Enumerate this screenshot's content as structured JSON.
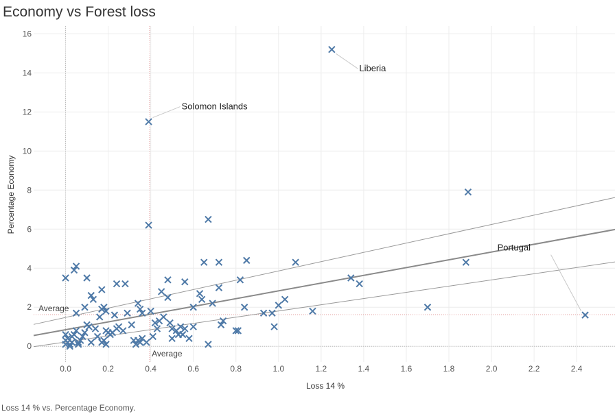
{
  "title": "Economy vs Forest loss",
  "caption": "Loss 14 % vs. Percentage Economy.",
  "chart_data": {
    "type": "scatter",
    "xlabel": "Loss 14 %",
    "ylabel": "Percentage Economy",
    "xlim": [
      -0.15,
      2.58
    ],
    "ylim": [
      -0.8,
      16.4
    ],
    "xticks": [
      "0.0",
      "0.2",
      "0.4",
      "0.6",
      "0.8",
      "1.0",
      "1.2",
      "1.4",
      "1.6",
      "1.8",
      "2.0",
      "2.2",
      "2.4"
    ],
    "yticks": [
      "0",
      "2",
      "4",
      "6",
      "8",
      "10",
      "12",
      "14",
      "16"
    ],
    "grid": true,
    "marker": "x",
    "marker_color": "#4e79a7",
    "reference_lines": {
      "x_average": {
        "value": 0.395,
        "label": "Average",
        "color": "#e6a6a6"
      },
      "y_average": {
        "value": 1.62,
        "label": "Average",
        "color": "#e6a6a6"
      }
    },
    "trend": {
      "line": [
        [
          -0.15,
          0.55
        ],
        [
          2.58,
          5.98
        ]
      ],
      "upper_band": [
        [
          -0.15,
          1.12
        ],
        [
          2.58,
          7.62
        ]
      ],
      "lower_band": [
        [
          -0.15,
          -0.02
        ],
        [
          2.58,
          4.32
        ]
      ]
    },
    "annotations": [
      {
        "label": "Liberia",
        "x": 1.25,
        "y": 15.2
      },
      {
        "label": "Solomon Islands",
        "x": 0.39,
        "y": 11.5
      },
      {
        "label": "Portugal",
        "x": 2.44,
        "y": 1.6
      }
    ],
    "points": [
      [
        1.25,
        15.2
      ],
      [
        0.39,
        11.5
      ],
      [
        1.89,
        7.9
      ],
      [
        0.39,
        6.2
      ],
      [
        0.67,
        6.5
      ],
      [
        1.88,
        4.3
      ],
      [
        2.44,
        1.6
      ],
      [
        1.7,
        2.0
      ],
      [
        1.34,
        3.5
      ],
      [
        1.38,
        3.2
      ],
      [
        1.16,
        1.8
      ],
      [
        1.08,
        4.3
      ],
      [
        0.85,
        4.4
      ],
      [
        0.82,
        3.4
      ],
      [
        0.72,
        4.3
      ],
      [
        0.65,
        4.3
      ],
      [
        0.72,
        3.0
      ],
      [
        0.69,
        2.2
      ],
      [
        0.63,
        2.7
      ],
      [
        0.64,
        2.4
      ],
      [
        0.56,
        3.3
      ],
      [
        0.48,
        3.4
      ],
      [
        0.45,
        2.8
      ],
      [
        0.48,
        2.5
      ],
      [
        0.4,
        1.8
      ],
      [
        0.36,
        1.7
      ],
      [
        0.34,
        2.2
      ],
      [
        0.35,
        1.9
      ],
      [
        0.28,
        3.2
      ],
      [
        0.24,
        3.2
      ],
      [
        0.17,
        2.9
      ],
      [
        0.1,
        3.5
      ],
      [
        0.04,
        3.9
      ],
      [
        0.05,
        4.1
      ],
      [
        0.0,
        3.5
      ],
      [
        0.12,
        2.6
      ],
      [
        0.13,
        2.4
      ],
      [
        0.09,
        2.0
      ],
      [
        0.17,
        1.9
      ],
      [
        0.18,
        2.0
      ],
      [
        0.19,
        1.8
      ],
      [
        0.16,
        1.5
      ],
      [
        0.23,
        1.6
      ],
      [
        0.29,
        1.7
      ],
      [
        0.31,
        1.1
      ],
      [
        0.24,
        0.9
      ],
      [
        0.25,
        1.0
      ],
      [
        0.22,
        0.7
      ],
      [
        0.21,
        0.6
      ],
      [
        0.19,
        0.8
      ],
      [
        0.18,
        0.3
      ],
      [
        0.19,
        0.1
      ],
      [
        0.17,
        0.2
      ],
      [
        0.15,
        0.5
      ],
      [
        0.14,
        0.9
      ],
      [
        0.11,
        1.0
      ],
      [
        0.1,
        1.1
      ],
      [
        0.09,
        0.7
      ],
      [
        0.08,
        0.5
      ],
      [
        0.07,
        0.3
      ],
      [
        0.06,
        0.1
      ],
      [
        0.05,
        1.7
      ],
      [
        0.05,
        0.8
      ],
      [
        0.04,
        0.6
      ],
      [
        0.03,
        0.2
      ],
      [
        0.02,
        0.0
      ],
      [
        0.01,
        0.4
      ],
      [
        0.0,
        0.6
      ],
      [
        0.0,
        0.1
      ],
      [
        0.0,
        0.3
      ],
      [
        0.01,
        0.2
      ],
      [
        0.02,
        0.1
      ],
      [
        0.03,
        0.5
      ],
      [
        0.12,
        0.2
      ],
      [
        0.2,
        0.7
      ],
      [
        0.27,
        0.8
      ],
      [
        0.33,
        0.1
      ],
      [
        0.34,
        0.3
      ],
      [
        0.35,
        0.2
      ],
      [
        0.36,
        0.4
      ],
      [
        0.38,
        0.2
      ],
      [
        0.41,
        0.5
      ],
      [
        0.42,
        1.2
      ],
      [
        0.43,
        0.9
      ],
      [
        0.44,
        1.3
      ],
      [
        0.46,
        1.5
      ],
      [
        0.49,
        1.2
      ],
      [
        0.5,
        0.9
      ],
      [
        0.5,
        0.4
      ],
      [
        0.52,
        0.8
      ],
      [
        0.53,
        0.6
      ],
      [
        0.54,
        1.0
      ],
      [
        0.55,
        0.6
      ],
      [
        0.56,
        0.9
      ],
      [
        0.58,
        0.4
      ],
      [
        0.6,
        1.0
      ],
      [
        0.6,
        2.0
      ],
      [
        0.67,
        0.1
      ],
      [
        0.73,
        1.1
      ],
      [
        0.74,
        1.3
      ],
      [
        0.8,
        0.8
      ],
      [
        0.81,
        0.8
      ],
      [
        0.84,
        2.0
      ],
      [
        0.93,
        1.7
      ],
      [
        0.97,
        1.7
      ],
      [
        0.98,
        1.0
      ],
      [
        1.0,
        2.1
      ],
      [
        1.03,
        2.4
      ],
      [
        0.32,
        0.3
      ],
      [
        0.06,
        0.2
      ]
    ]
  }
}
